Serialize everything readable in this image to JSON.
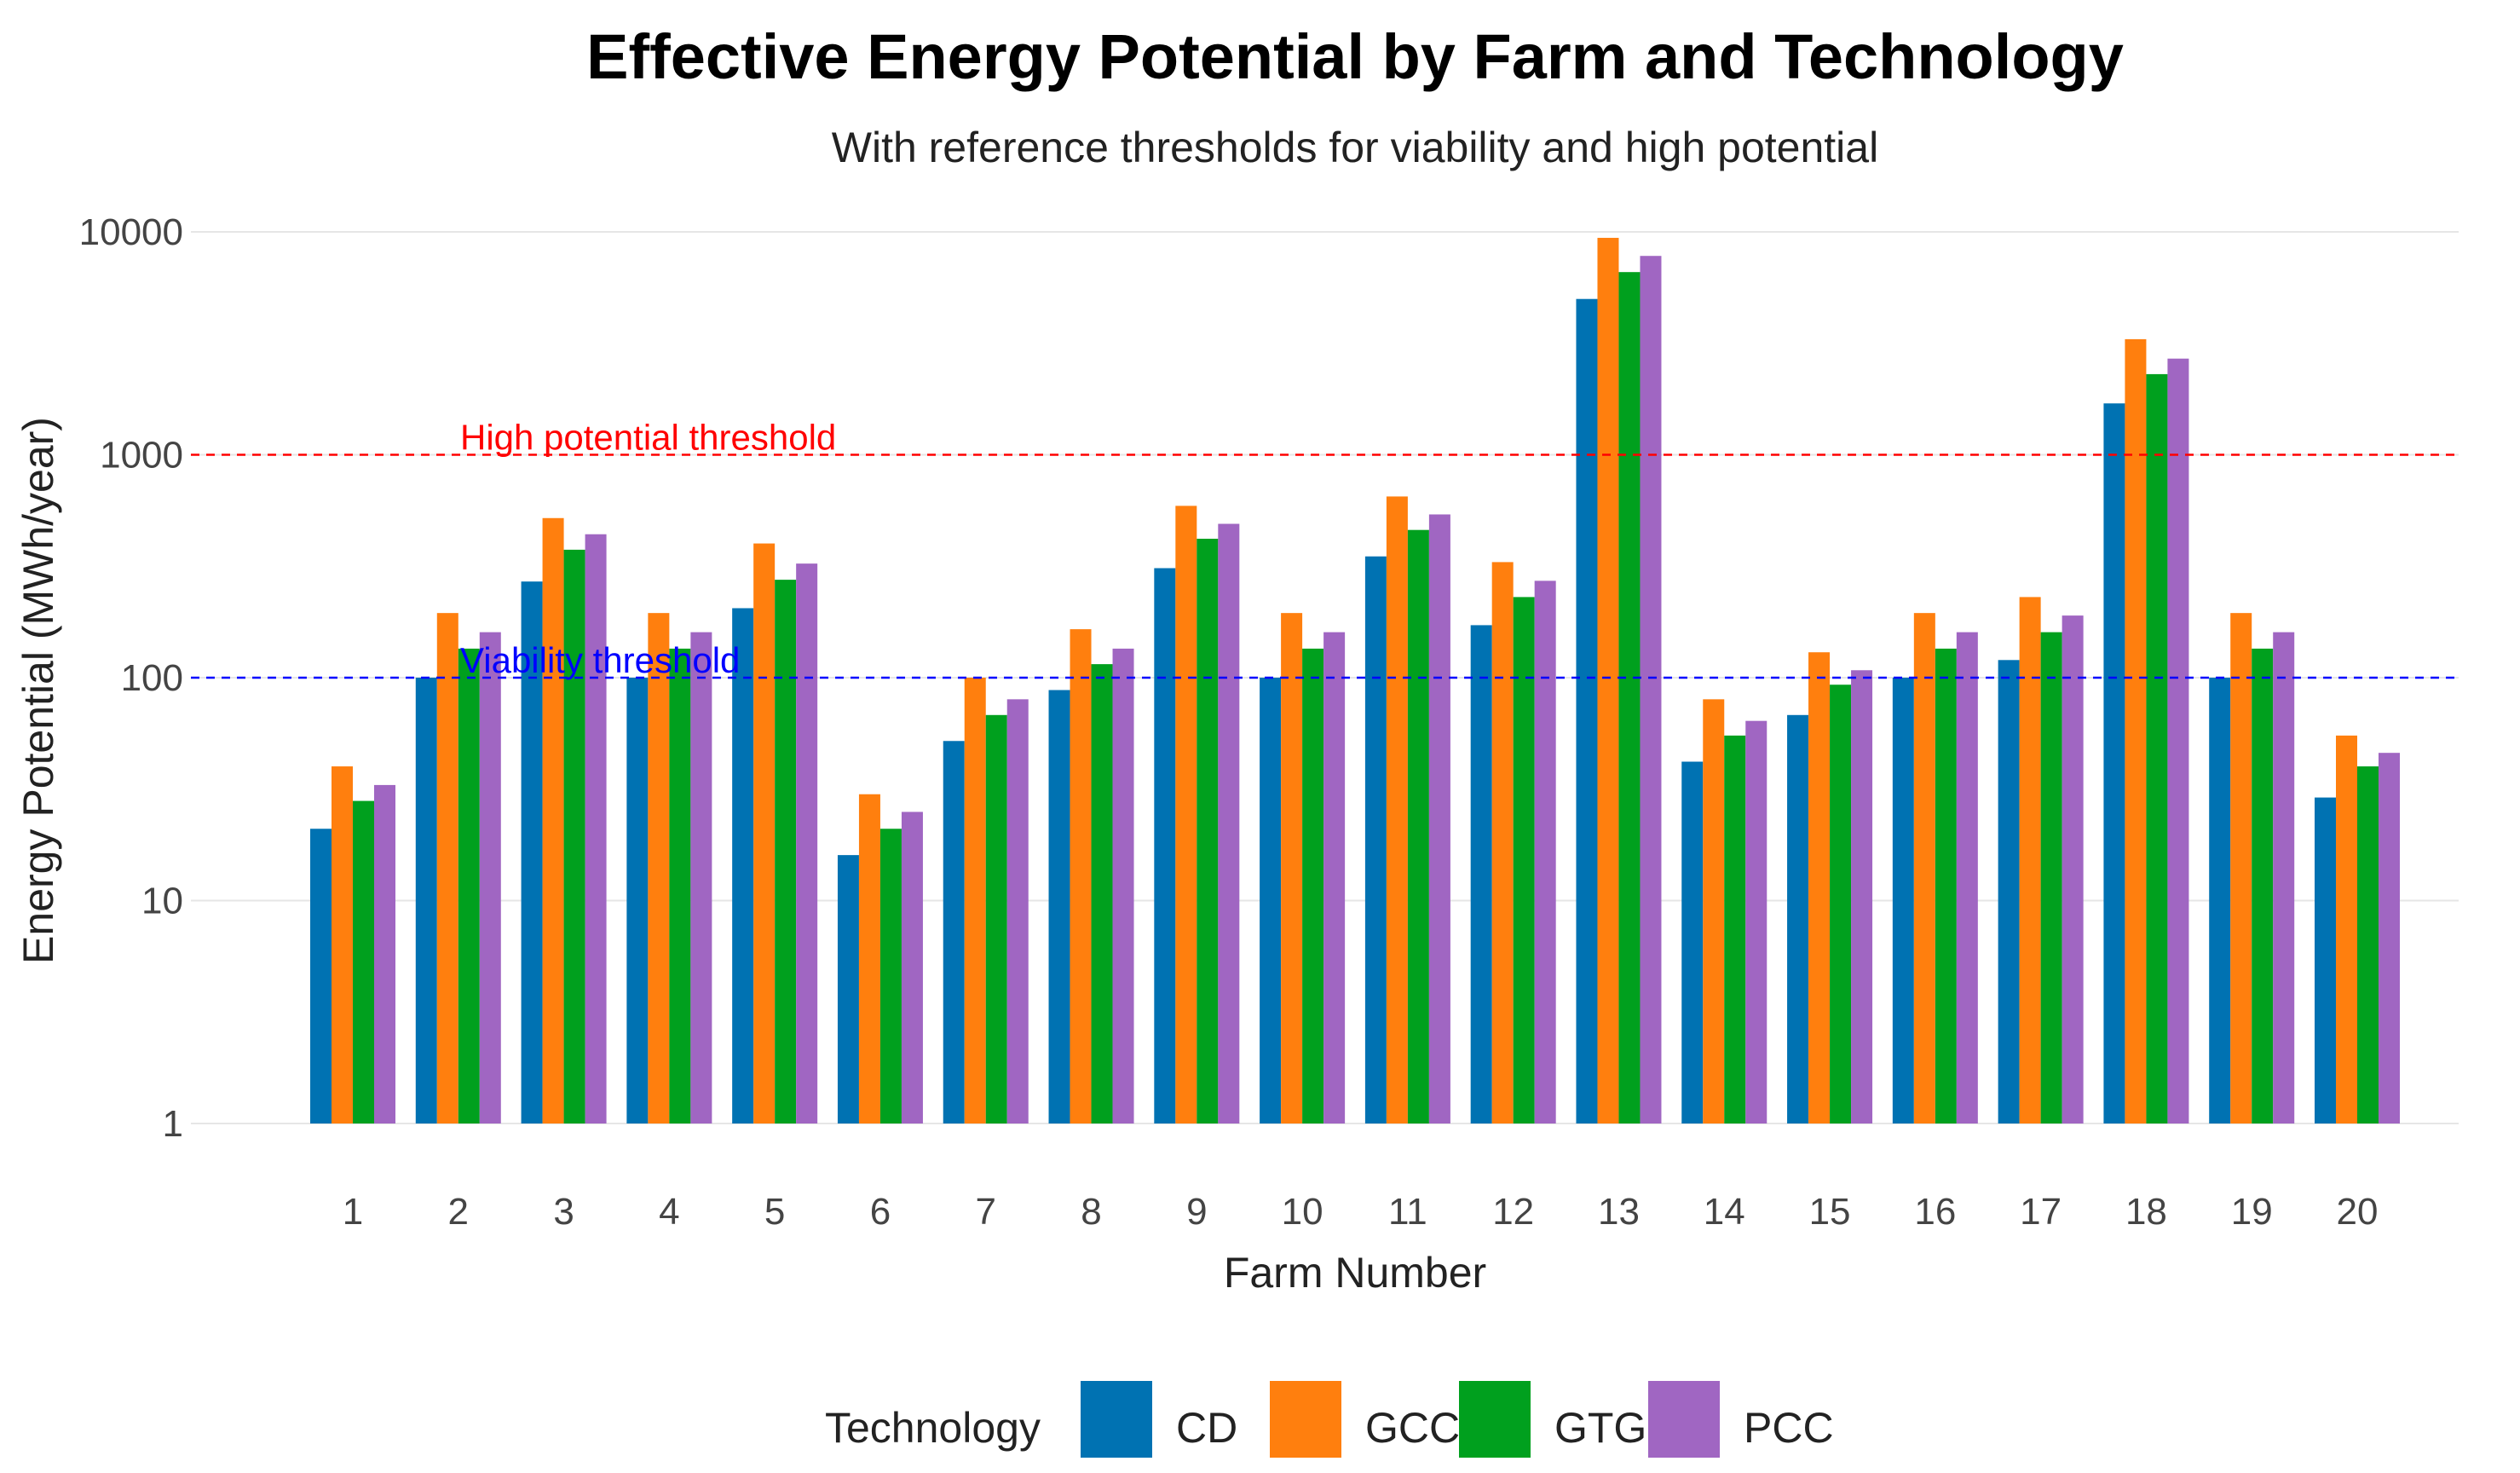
{
  "chart_data": {
    "type": "bar",
    "title": "Effective Energy Potential by Farm and Technology",
    "subtitle": "With reference thresholds for viability and high potential",
    "xlabel": "Farm Number",
    "ylabel": "Energy Potential (MWh/year)",
    "yscale": "log",
    "ylim": [
      1,
      10000
    ],
    "yticks": [
      1,
      10,
      100,
      1000,
      10000
    ],
    "ytick_labels": [
      "1",
      "10",
      "100",
      "1000",
      "10000"
    ],
    "grid": true,
    "legend_title": "Technology",
    "legend_position": "bottom",
    "categories": [
      "1",
      "2",
      "3",
      "4",
      "5",
      "6",
      "7",
      "8",
      "9",
      "10",
      "11",
      "12",
      "13",
      "14",
      "15",
      "16",
      "17",
      "18",
      "19",
      "20"
    ],
    "series": [
      {
        "name": "CD",
        "color": "#0072B2",
        "values": [
          21,
          100,
          270,
          100,
          205,
          16,
          52,
          88,
          310,
          100,
          350,
          172,
          5000,
          42,
          68,
          100,
          120,
          1700,
          100,
          29
        ]
      },
      {
        "name": "GCC",
        "color": "#FF7F0E",
        "values": [
          40,
          195,
          520,
          195,
          400,
          30,
          100,
          165,
          590,
          195,
          650,
          330,
          9400,
          80,
          130,
          195,
          230,
          3300,
          195,
          55
        ]
      },
      {
        "name": "GTG",
        "color": "#00A01E",
        "values": [
          28,
          135,
          375,
          135,
          275,
          21,
          68,
          115,
          420,
          135,
          460,
          230,
          6600,
          55,
          93,
          135,
          160,
          2300,
          135,
          40
        ]
      },
      {
        "name": "PCC",
        "color": "#A066C2",
        "values": [
          33,
          160,
          440,
          160,
          325,
          25,
          80,
          135,
          490,
          160,
          540,
          272,
          7800,
          64,
          108,
          160,
          190,
          2700,
          160,
          46
        ]
      }
    ],
    "reference_lines": [
      {
        "label": "High potential threshold",
        "value": 1000,
        "color": "#FF0000"
      },
      {
        "label": "Viability threshold",
        "value": 100,
        "color": "#0000FF"
      }
    ]
  }
}
